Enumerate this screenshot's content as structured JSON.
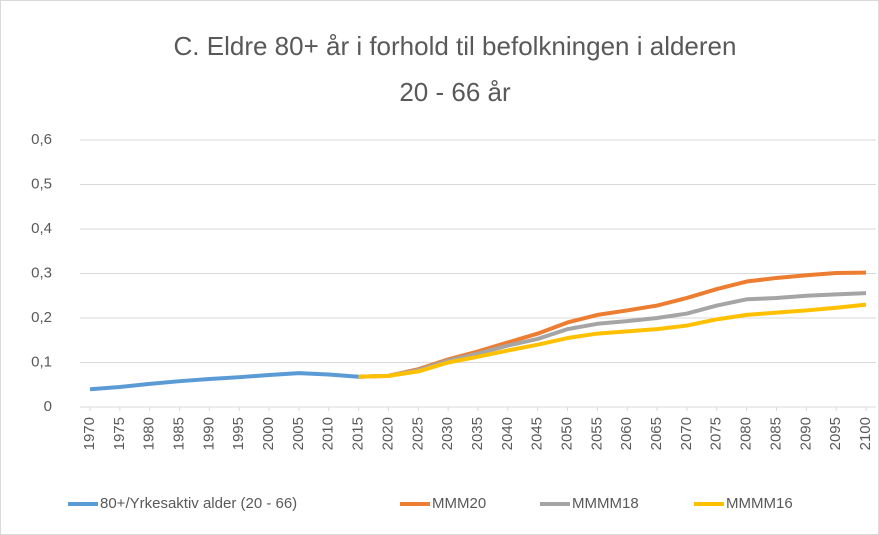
{
  "chart_data": {
    "type": "line",
    "title": [
      "C. Eldre 80+ år  i forhold til befolkningen i alderen",
      "20 - 66 år"
    ],
    "x": [
      1970,
      1975,
      1980,
      1985,
      1990,
      1995,
      2000,
      2005,
      2010,
      2015,
      2020,
      2025,
      2030,
      2035,
      2040,
      2045,
      2050,
      2055,
      2060,
      2065,
      2070,
      2075,
      2080,
      2085,
      2090,
      2095,
      2100
    ],
    "xlim": [
      1970,
      2100
    ],
    "xticks": [
      1970,
      1975,
      1980,
      1985,
      1990,
      1995,
      2000,
      2005,
      2010,
      2015,
      2020,
      2025,
      2030,
      2035,
      2040,
      2045,
      2050,
      2055,
      2060,
      2065,
      2070,
      2075,
      2080,
      2085,
      2090,
      2095,
      2100
    ],
    "ylim": [
      0,
      0.6
    ],
    "yticks": [
      0,
      {
        "value": 0.1,
        "label": "0,1"
      },
      {
        "value": 0.2,
        "label": "0,2"
      },
      {
        "value": 0.3,
        "label": "0,3"
      },
      {
        "value": 0.4,
        "label": "0,4"
      },
      {
        "value": 0.5,
        "label": "0,5"
      },
      {
        "value": 0.6,
        "label": "0,6"
      }
    ],
    "grid": true,
    "legend": "bottom",
    "series": [
      {
        "name": "80+/Yrkesaktiv alder (20 - 66)",
        "color": "#5b9bd5",
        "values": [
          0.04,
          0.045,
          0.052,
          0.058,
          0.063,
          0.067,
          0.072,
          0.076,
          0.073,
          0.068,
          null,
          null,
          null,
          null,
          null,
          null,
          null,
          null,
          null,
          null,
          null,
          null,
          null,
          null,
          null,
          null,
          null
        ]
      },
      {
        "name": "MMM20",
        "color": "#ed7d31",
        "values": [
          null,
          null,
          null,
          null,
          null,
          null,
          null,
          null,
          null,
          0.068,
          0.07,
          0.085,
          0.107,
          0.125,
          0.145,
          0.165,
          0.19,
          0.207,
          0.217,
          0.228,
          0.245,
          0.265,
          0.282,
          0.29,
          0.296,
          0.301,
          0.302
        ]
      },
      {
        "name": "MMMM18",
        "color": "#a5a5a5",
        "values": [
          null,
          null,
          null,
          null,
          null,
          null,
          null,
          null,
          null,
          0.068,
          0.07,
          0.083,
          0.104,
          0.12,
          0.138,
          0.153,
          0.175,
          0.187,
          0.193,
          0.2,
          0.21,
          0.228,
          0.242,
          0.245,
          0.25,
          0.253,
          0.256
        ]
      },
      {
        "name": "MMMM16",
        "color": "#ffc000",
        "values": [
          null,
          null,
          null,
          null,
          null,
          null,
          null,
          null,
          null,
          0.068,
          0.07,
          0.08,
          0.1,
          0.113,
          0.127,
          0.14,
          0.155,
          0.165,
          0.17,
          0.175,
          0.183,
          0.197,
          0.207,
          0.212,
          0.217,
          0.223,
          0.23
        ]
      }
    ]
  }
}
